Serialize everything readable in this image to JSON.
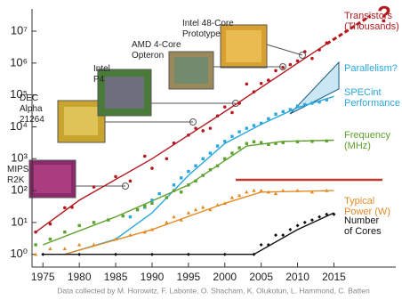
{
  "chart_data": {
    "type": "scatter",
    "log_y": true,
    "xlim": [
      1973.5,
      2023.5
    ],
    "ylim": [
      0.4,
      50000000
    ],
    "xticks": [
      1975,
      1980,
      1985,
      1990,
      1995,
      2000,
      2005,
      2010,
      2015
    ],
    "yticks": [
      {
        "value": 1,
        "label": "10⁰"
      },
      {
        "value": 10,
        "label": "10¹"
      },
      {
        "value": 100,
        "label": "10²"
      },
      {
        "value": 1000,
        "label": "10³"
      },
      {
        "value": 10000,
        "label": "10⁴"
      },
      {
        "value": 100000,
        "label": "10⁵"
      },
      {
        "value": 1000000,
        "label": "10⁶"
      },
      {
        "value": 10000000,
        "label": "10⁷"
      }
    ],
    "series": [
      {
        "name": "Transistors\n(Thousands)",
        "color": "#b3191e",
        "marker": "circle",
        "x": [
          1974,
          1976,
          1978,
          1979,
          1982,
          1985,
          1987,
          1989,
          1990,
          1992,
          1993,
          1995,
          1996,
          1997,
          1998,
          1999,
          2000,
          2001,
          2002,
          2003,
          2004,
          2005,
          2006,
          2007,
          2008,
          2009,
          2010,
          2011,
          2012,
          2013,
          2014
        ],
        "values": [
          5,
          9,
          29,
          30,
          130,
          275,
          200,
          1200,
          500,
          1000,
          3100,
          5500,
          9000,
          7500,
          9000,
          22000,
          42000,
          28000,
          55000,
          220000,
          125000,
          230000,
          290000,
          580000,
          730000,
          900000,
          1170000,
          2270000,
          1400000,
          2600000,
          4300000
        ]
      },
      {
        "name": "SPECint\nPerformance",
        "color": "#2aa7dd",
        "marker": "square",
        "x": [
          1987,
          1989,
          1990,
          1991,
          1993,
          1994,
          1995,
          1996,
          1997,
          1998,
          1999,
          2000,
          2001,
          2002,
          2003,
          2004,
          2005,
          2006,
          2007,
          2008,
          2009,
          2010,
          2011,
          2012,
          2013,
          2014
        ],
        "values": [
          15,
          30,
          50,
          80,
          150,
          250,
          400,
          600,
          1000,
          1500,
          2500,
          3500,
          5000,
          7000,
          9000,
          11000,
          13000,
          18000,
          25000,
          30000,
          35000,
          45000,
          50000,
          55000,
          60000,
          70000
        ]
      },
      {
        "name": "Frequency\n(MHz)",
        "color": "#5ea12e",
        "marker": "square",
        "x": [
          1974,
          1976,
          1978,
          1980,
          1982,
          1984,
          1986,
          1988,
          1989,
          1990,
          1992,
          1993,
          1994,
          1995,
          1996,
          1997,
          1998,
          1999,
          2000,
          2001,
          2002,
          2003,
          2004,
          2005,
          2006,
          2007,
          2008,
          2010,
          2012,
          2014
        ],
        "values": [
          2,
          3,
          5,
          8,
          10,
          12,
          16,
          25,
          33,
          40,
          60,
          100,
          90,
          150,
          200,
          300,
          450,
          600,
          1000,
          1500,
          2200,
          3000,
          3400,
          3200,
          2800,
          3000,
          3200,
          3400,
          3500,
          3600
        ]
      },
      {
        "name": "Typical\nPower (W)",
        "color": "#e38b25",
        "marker": "triangle",
        "x": [
          1974,
          1976,
          1978,
          1980,
          1982,
          1985,
          1987,
          1989,
          1990,
          1992,
          1993,
          1994,
          1995,
          1996,
          1997,
          1998,
          1999,
          2000,
          2001,
          2002,
          2003,
          2004,
          2005,
          2006,
          2007,
          2008,
          2010,
          2012,
          2014
        ],
        "values": [
          1,
          1.5,
          1.5,
          2,
          2,
          3,
          4,
          5,
          6,
          10,
          15,
          12,
          20,
          25,
          30,
          25,
          35,
          40,
          60,
          70,
          90,
          100,
          100,
          90,
          80,
          100,
          100,
          90,
          100
        ]
      },
      {
        "name": "Number\nof Cores",
        "color": "#111111",
        "marker": "diamond",
        "x": [
          1975,
          1980,
          1985,
          1990,
          1995,
          2000,
          2004,
          2005,
          2006,
          2007,
          2008,
          2009,
          2010,
          2011,
          2012,
          2013,
          2014,
          2015
        ],
        "values": [
          1,
          1,
          1,
          1,
          1,
          1,
          1,
          2,
          2,
          4,
          4,
          6,
          8,
          10,
          12,
          15,
          18,
          18
        ]
      }
    ],
    "fits": [
      {
        "color": "#b3191e",
        "x": [
          1974,
          1980,
          1990,
          2000,
          2010,
          2014
        ],
        "values": [
          5,
          50,
          1000,
          30000,
          1000000,
          4000000
        ]
      },
      {
        "color": "#b3191e",
        "dashed": true,
        "x": [
          2014,
          2020
        ],
        "values": [
          4000000,
          30000000
        ]
      },
      {
        "color": "#2aa7dd",
        "x": [
          1978,
          1985,
          1990,
          1995,
          2000,
          2005,
          2010,
          2015
        ],
        "values": [
          1,
          3,
          20,
          300,
          3000,
          12000,
          40000,
          90000
        ]
      },
      {
        "color": "#5ea12e",
        "x": [
          1975,
          1985,
          1995,
          2003,
          2008,
          2015
        ],
        "values": [
          2,
          15,
          150,
          2500,
          3500,
          3800
        ]
      },
      {
        "color": "#e38b25",
        "x": [
          1978,
          1990,
          2000,
          2005,
          2015
        ],
        "values": [
          1,
          6,
          40,
          90,
          100
        ]
      },
      {
        "color": "#111111",
        "x": [
          1975,
          2004,
          2010,
          2015
        ],
        "values": [
          1,
          1,
          6,
          20
        ]
      }
    ],
    "parallelism_label": "Parallelism?",
    "question_mark": "?",
    "chip_labels": [
      "MIPS\nR2K",
      "DEC\nAlpha\n21264",
      "Intel\nP4",
      "AMD 4-Core\nOpteron",
      "Intel 48-Core\nPrototype"
    ],
    "footer": "Data collected by M. Horowitz, F. Labonte, O. Shacham, K. Olukotun, L. Hammond, C. Batten"
  }
}
